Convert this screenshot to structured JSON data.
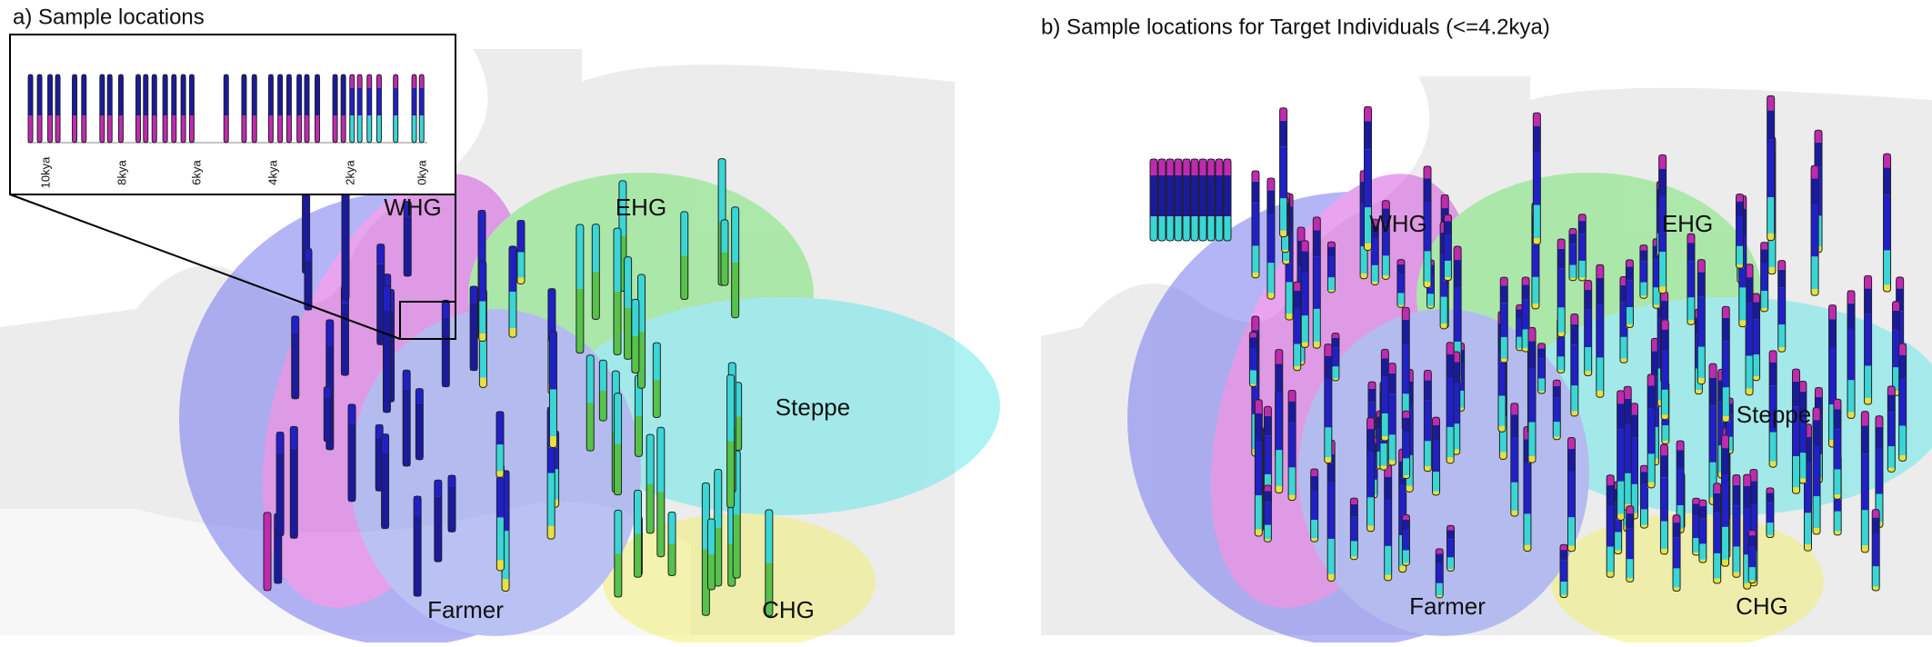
{
  "panels": [
    {
      "title": "a) Sample locations",
      "regions": [
        "WHG",
        "EHG",
        "Steppe",
        "Farmer",
        "CHG"
      ],
      "inset": {
        "ticks": [
          "10kya",
          "8kya",
          "6kya",
          "4kya",
          "2kya",
          "0kya"
        ]
      }
    },
    {
      "title": "b) Sample locations for Target Individuals (<=4.2kya)",
      "regions": [
        "WHG",
        "EHG",
        "Steppe",
        "Farmer",
        "CHG"
      ]
    }
  ]
}
